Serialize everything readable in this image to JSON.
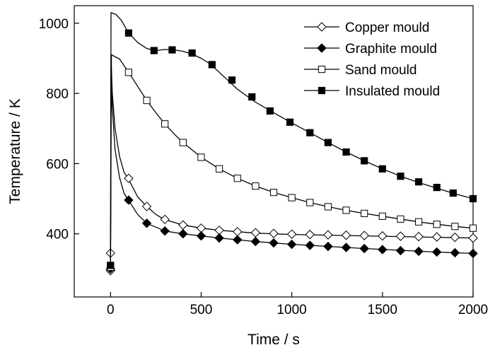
{
  "chart_data": {
    "type": "line",
    "title": "",
    "xlabel": "Time / s",
    "ylabel": "Temperature / K",
    "xlim": [
      -200,
      2000
    ],
    "ylim": [
      220,
      1050
    ],
    "xticks": [
      0,
      500,
      1000,
      1500,
      2000
    ],
    "yticks": [
      400,
      600,
      800,
      1000
    ],
    "grid": false,
    "legend_position": "top-right",
    "series": [
      {
        "name": "Copper mould",
        "marker": "open-diamond",
        "line": [
          [
            0,
            295
          ],
          [
            3,
            900
          ],
          [
            10,
            800
          ],
          [
            25,
            700
          ],
          [
            50,
            620
          ],
          [
            75,
            575
          ],
          [
            100,
            555
          ],
          [
            150,
            505
          ],
          [
            200,
            478
          ],
          [
            250,
            455
          ],
          [
            300,
            440
          ],
          [
            400,
            425
          ],
          [
            500,
            416
          ],
          [
            600,
            410
          ],
          [
            700,
            406
          ],
          [
            800,
            402
          ],
          [
            900,
            400
          ],
          [
            1000,
            398
          ],
          [
            1200,
            396
          ],
          [
            1400,
            394
          ],
          [
            1600,
            392
          ],
          [
            1800,
            390
          ],
          [
            2000,
            388
          ]
        ],
        "markers": [
          [
            0,
            295
          ],
          [
            0,
            345
          ],
          [
            100,
            558
          ],
          [
            200,
            478
          ],
          [
            300,
            441
          ],
          [
            400,
            425
          ],
          [
            500,
            416
          ],
          [
            600,
            410
          ],
          [
            700,
            406
          ],
          [
            800,
            403
          ],
          [
            900,
            401
          ],
          [
            1000,
            399
          ],
          [
            1100,
            398
          ],
          [
            1200,
            397
          ],
          [
            1300,
            396
          ],
          [
            1400,
            395
          ],
          [
            1500,
            394
          ],
          [
            1600,
            393
          ],
          [
            1700,
            392
          ],
          [
            1800,
            391
          ],
          [
            1900,
            390
          ],
          [
            2000,
            388
          ]
        ]
      },
      {
        "name": "Graphite mould",
        "marker": "filled-diamond",
        "line": [
          [
            0,
            300
          ],
          [
            3,
            880
          ],
          [
            10,
            760
          ],
          [
            25,
            640
          ],
          [
            50,
            560
          ],
          [
            75,
            515
          ],
          [
            100,
            495
          ],
          [
            150,
            455
          ],
          [
            200,
            430
          ],
          [
            300,
            408
          ],
          [
            400,
            400
          ],
          [
            500,
            394
          ],
          [
            600,
            388
          ],
          [
            700,
            383
          ],
          [
            800,
            378
          ],
          [
            900,
            374
          ],
          [
            1000,
            370
          ],
          [
            1200,
            364
          ],
          [
            1400,
            358
          ],
          [
            1600,
            353
          ],
          [
            1800,
            348
          ],
          [
            2000,
            344
          ]
        ],
        "markers": [
          [
            0,
            300
          ],
          [
            100,
            496
          ],
          [
            200,
            430
          ],
          [
            300,
            408
          ],
          [
            400,
            400
          ],
          [
            500,
            394
          ],
          [
            600,
            388
          ],
          [
            700,
            383
          ],
          [
            800,
            378
          ],
          [
            900,
            374
          ],
          [
            1000,
            370
          ],
          [
            1100,
            367
          ],
          [
            1200,
            364
          ],
          [
            1300,
            361
          ],
          [
            1400,
            358
          ],
          [
            1500,
            355
          ],
          [
            1600,
            352
          ],
          [
            1700,
            350
          ],
          [
            1800,
            348
          ],
          [
            1900,
            346
          ],
          [
            2000,
            344
          ]
        ]
      },
      {
        "name": "Sand mould",
        "marker": "open-square",
        "line": [
          [
            0,
            305
          ],
          [
            5,
            910
          ],
          [
            50,
            898
          ],
          [
            100,
            860
          ],
          [
            150,
            820
          ],
          [
            200,
            780
          ],
          [
            250,
            745
          ],
          [
            300,
            713
          ],
          [
            350,
            685
          ],
          [
            400,
            660
          ],
          [
            500,
            618
          ],
          [
            600,
            585
          ],
          [
            700,
            558
          ],
          [
            800,
            536
          ],
          [
            900,
            518
          ],
          [
            1000,
            503
          ],
          [
            1100,
            489
          ],
          [
            1200,
            477
          ],
          [
            1300,
            467
          ],
          [
            1400,
            458
          ],
          [
            1500,
            450
          ],
          [
            1600,
            442
          ],
          [
            1700,
            434
          ],
          [
            1800,
            427
          ],
          [
            1900,
            421
          ],
          [
            2000,
            416
          ]
        ],
        "markers": [
          [
            0,
            305
          ],
          [
            100,
            860
          ],
          [
            200,
            780
          ],
          [
            300,
            713
          ],
          [
            400,
            660
          ],
          [
            500,
            618
          ],
          [
            600,
            585
          ],
          [
            700,
            558
          ],
          [
            800,
            536
          ],
          [
            900,
            518
          ],
          [
            1000,
            503
          ],
          [
            1100,
            489
          ],
          [
            1200,
            477
          ],
          [
            1300,
            467
          ],
          [
            1400,
            458
          ],
          [
            1500,
            450
          ],
          [
            1600,
            442
          ],
          [
            1700,
            434
          ],
          [
            1800,
            427
          ],
          [
            1900,
            421
          ],
          [
            2000,
            416
          ]
        ]
      },
      {
        "name": "Insulated mould",
        "marker": "filled-square",
        "line": [
          [
            0,
            310
          ],
          [
            3,
            1030
          ],
          [
            30,
            1025
          ],
          [
            60,
            1008
          ],
          [
            100,
            972
          ],
          [
            150,
            945
          ],
          [
            200,
            928
          ],
          [
            250,
            922
          ],
          [
            300,
            925
          ],
          [
            350,
            924
          ],
          [
            400,
            920
          ],
          [
            450,
            912
          ],
          [
            500,
            900
          ],
          [
            550,
            884
          ],
          [
            600,
            860
          ],
          [
            650,
            836
          ],
          [
            700,
            812
          ],
          [
            800,
            775
          ],
          [
            900,
            745
          ],
          [
            1000,
            716
          ],
          [
            1100,
            688
          ],
          [
            1200,
            660
          ],
          [
            1300,
            633
          ],
          [
            1400,
            608
          ],
          [
            1500,
            585
          ],
          [
            1600,
            564
          ],
          [
            1700,
            546
          ],
          [
            1800,
            530
          ],
          [
            1900,
            514
          ],
          [
            2000,
            500
          ]
        ],
        "markers": [
          [
            0,
            310
          ],
          [
            100,
            972
          ],
          [
            240,
            922
          ],
          [
            340,
            924
          ],
          [
            450,
            915
          ],
          [
            560,
            882
          ],
          [
            670,
            838
          ],
          [
            780,
            790
          ],
          [
            880,
            750
          ],
          [
            990,
            718
          ],
          [
            1100,
            688
          ],
          [
            1200,
            660
          ],
          [
            1300,
            633
          ],
          [
            1400,
            608
          ],
          [
            1500,
            585
          ],
          [
            1600,
            564
          ],
          [
            1700,
            548
          ],
          [
            1800,
            532
          ],
          [
            1890,
            516
          ],
          [
            2000,
            500
          ]
        ]
      }
    ]
  }
}
